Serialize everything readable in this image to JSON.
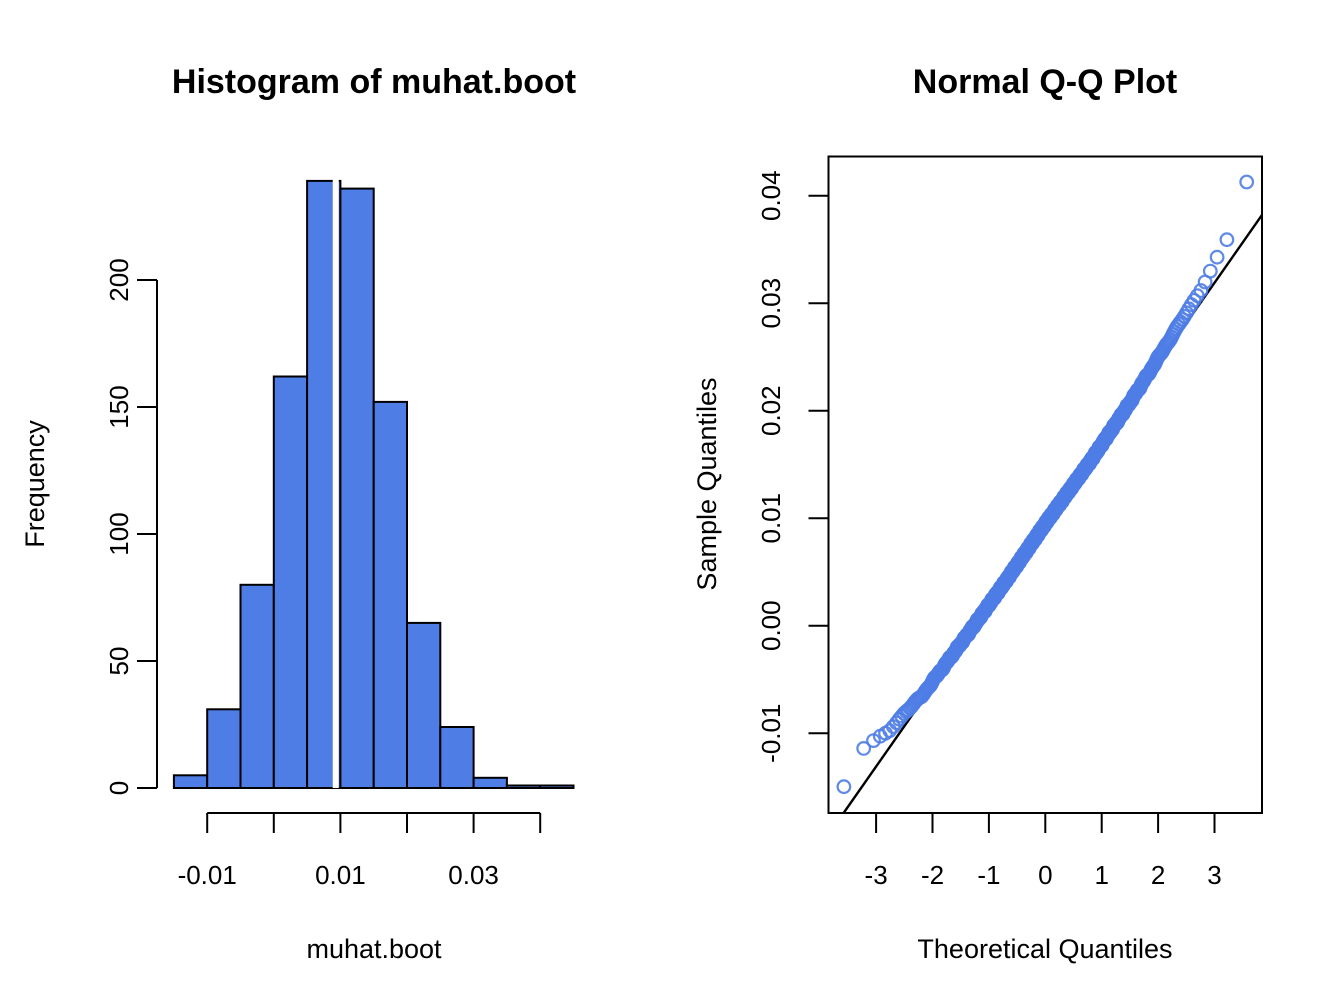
{
  "figure": {
    "background": "#ffffff",
    "foreground": "#000000",
    "accent_blue": "#4f7de6"
  },
  "chart_data": [
    {
      "type": "bar",
      "subtype": "histogram",
      "title": "Histogram of muhat.boot",
      "xlabel": "muhat.boot",
      "ylabel": "Frequency",
      "bin_start": -0.015,
      "bin_width": 0.005,
      "breaks": [
        -0.015,
        -0.01,
        -0.005,
        0,
        0.005,
        0.01,
        0.015,
        0.02,
        0.025,
        0.03,
        0.035,
        0.04,
        0.045
      ],
      "counts": [
        5,
        31,
        80,
        162,
        239,
        236,
        152,
        65,
        24,
        4,
        1,
        1
      ],
      "n_total": 1000,
      "bar_fill": "#4f7de6",
      "bar_stroke": "#000000",
      "x_ticks": {
        "values": [
          -0.01,
          0,
          0.01,
          0.02,
          0.03,
          0.04
        ],
        "labels": [
          "-0.01",
          "",
          "0.01",
          "",
          "0.03",
          ""
        ]
      },
      "y_ticks": {
        "values": [
          0,
          50,
          100,
          150,
          200
        ],
        "labels": [
          "0",
          "50",
          "100",
          "150",
          "200"
        ]
      },
      "xlim": [
        -0.015,
        0.045
      ],
      "ylim": [
        0,
        239
      ],
      "grid": false,
      "estimate_line": {
        "value": 0.0093,
        "color": "#ffffff",
        "width": 6
      }
    },
    {
      "type": "scatter",
      "subtype": "normal-qq",
      "title": "Normal Q-Q Plot",
      "xlabel": "Theoretical Quantiles",
      "ylabel": "Sample Quantiles",
      "n_points": 1000,
      "point_color": "#4f7de6",
      "point_shape": "open-circle",
      "x_ticks": {
        "values": [
          -3,
          -2,
          -1,
          0,
          1,
          2,
          3
        ],
        "labels": [
          "-3",
          "-2",
          "-1",
          "0",
          "1",
          "2",
          "3"
        ]
      },
      "y_ticks": {
        "values": [
          -0.01,
          0,
          0.01,
          0.02,
          0.03,
          0.04
        ],
        "labels": [
          "-0.01",
          "0.00",
          "0.01",
          "0.02",
          "0.03",
          "0.04"
        ]
      },
      "xlim": [
        -3.88,
        3.88
      ],
      "ylim": [
        -0.0172,
        0.0436
      ],
      "grid": false,
      "qq_line": {
        "intercept": 0.0094,
        "slope": 0.0075,
        "color": "#000000"
      },
      "notable_points": [
        {
          "x": 3.57,
          "y": 0.0413
        },
        {
          "x": 3.35,
          "y": 0.0366
        },
        {
          "x": 3.22,
          "y": 0.0359
        },
        {
          "x": 3.05,
          "y": 0.0344
        },
        {
          "x": 2.92,
          "y": 0.0322
        },
        {
          "x": 2.83,
          "y": 0.0313
        },
        {
          "x": -2.84,
          "y": -0.0102
        },
        {
          "x": -3.07,
          "y": -0.0109
        },
        {
          "x": -3.22,
          "y": -0.0114
        },
        {
          "x": -3.57,
          "y": -0.015
        }
      ],
      "render": {
        "z_scale": 1.085,
        "noise_amp": 0.00012,
        "point_radius": 6.3,
        "point_stroke_width": 2.2,
        "deviation_profile": [
          [
            -3.95,
            0.0022
          ],
          [
            -3.57,
            0.0024
          ],
          [
            -3.3,
            0.0036
          ],
          [
            -3.0,
            0.0026
          ],
          [
            -2.8,
            0.0017
          ],
          [
            -2.5,
            0.0012
          ],
          [
            -2.2,
            0.0005
          ],
          [
            -1.8,
            0.0003
          ],
          [
            -1.3,
            0.0001
          ],
          [
            -0.7,
            0.0
          ],
          [
            0,
            0.0001
          ],
          [
            0.8,
            -0.0001
          ],
          [
            1.5,
            0.0001
          ],
          [
            1.9,
            0.0004
          ],
          [
            2.2,
            0.0007
          ],
          [
            2.5,
            0.0009
          ],
          [
            2.8,
            0.0012
          ],
          [
            3.0,
            0.0019
          ],
          [
            3.1,
            0.0022
          ],
          [
            3.25,
            0.0024
          ],
          [
            3.4,
            0.002
          ],
          [
            3.5,
            0.003
          ],
          [
            3.57,
            0.0051
          ],
          [
            3.95,
            0.0051
          ]
        ]
      }
    }
  ]
}
